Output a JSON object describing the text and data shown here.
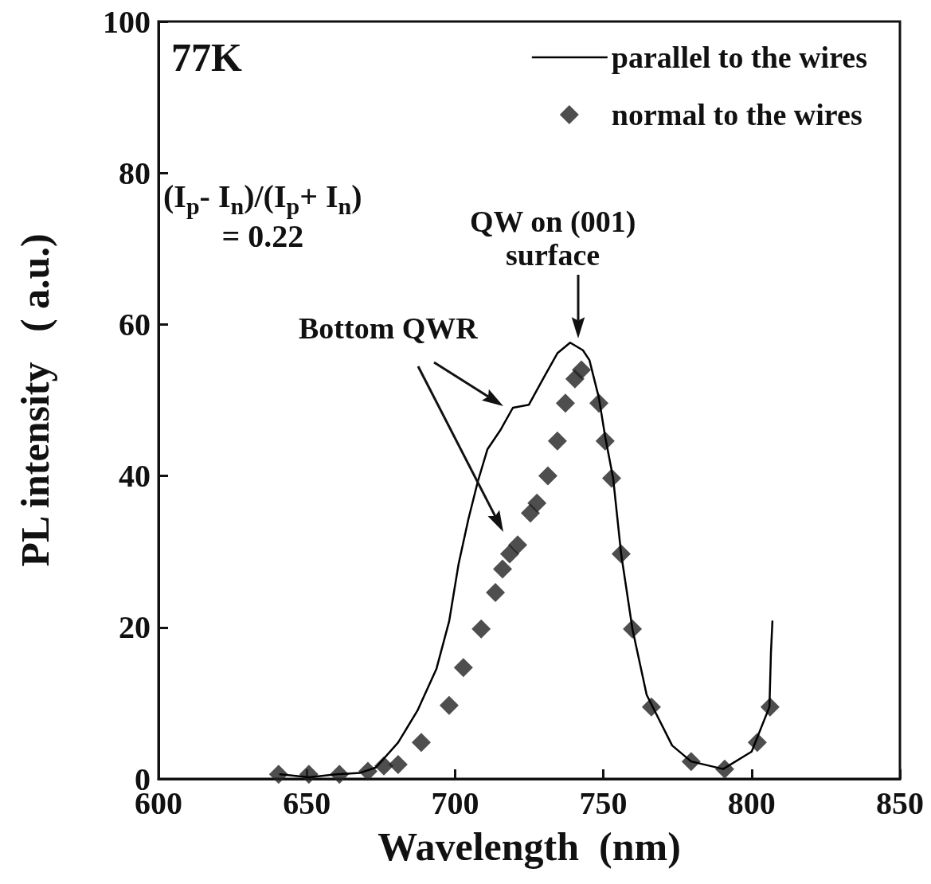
{
  "chart_data": {
    "type": "line",
    "xlabel": "Wavelength  (nm)",
    "ylabel": "PL intensity   ( a.u.)",
    "xlim": [
      600,
      850
    ],
    "xticks": [
      600,
      650,
      700,
      750,
      800,
      850
    ],
    "ylim": [
      0,
      100
    ],
    "yticks": [
      0,
      20,
      40,
      60,
      80,
      100
    ],
    "grid": false,
    "legend": "top right",
    "annotations": [
      "77K",
      "(I$_{p}$- I$_{n}$)/(I$_{p}$+ I$_{n}$)\n= 0.22",
      "QW on (001)\nsurface",
      "Bottom QWR"
    ],
    "series": [
      {
        "name": "parallel to the wires",
        "marker": "none",
        "line_style": "solid",
        "color": "#000000",
        "x": [
          641,
          650.8,
          660,
          668,
          673.3,
          680.8,
          687.3,
          693.7,
          698,
          701.2,
          704.5,
          707.7,
          710.9,
          715.2,
          719.5,
          724.9,
          730.2,
          734.5,
          738.8,
          743.1,
          745.3,
          748.5,
          750.6,
          753.3,
          756,
          759.8,
          764.6,
          773.2,
          779.6,
          790.4,
          800,
          806,
          806.5,
          807
        ],
        "values": [
          0.6,
          0.2,
          0.6,
          0.8,
          1.5,
          4.8,
          9,
          14.5,
          20.8,
          28.4,
          34.3,
          39.3,
          43.5,
          46,
          49,
          49.4,
          53.2,
          56.2,
          57.6,
          56.6,
          55.3,
          50.3,
          45.2,
          39.7,
          29.7,
          19.8,
          11.1,
          4.4,
          2.3,
          1.3,
          3.6,
          9.5,
          16.6,
          20.8
        ]
      },
      {
        "name": "normal to the wires",
        "type": "scatter",
        "marker": "diamond",
        "color": "#222222",
        "x": [
          640.5,
          650.7,
          661,
          670.6,
          676,
          680.8,
          688.6,
          698,
          702.8,
          708.8,
          713.6,
          716,
          718.4,
          721.1,
          725.4,
          727.6,
          731.3,
          734.5,
          737.2,
          740.4,
          742.6,
          748.5,
          750.6,
          752.8,
          756,
          759.8,
          766.2,
          779.6,
          790.9,
          801.9,
          806.2
        ],
        "values": [
          0.6,
          0.6,
          0.6,
          1,
          1.7,
          1.9,
          4.8,
          9.7,
          14.7,
          19.8,
          24.6,
          27.7,
          29.7,
          30.9,
          35.1,
          36.4,
          40,
          44.6,
          49.6,
          52.8,
          54,
          49.6,
          44.6,
          39.7,
          29.7,
          19.8,
          9.5,
          2.3,
          1.3,
          4.8,
          9.5
        ]
      }
    ]
  }
}
